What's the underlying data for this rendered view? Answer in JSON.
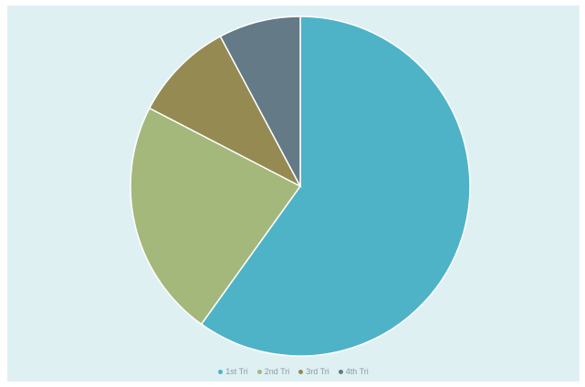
{
  "chart_data": {
    "type": "pie",
    "title": "",
    "categories": [
      "1st Tri",
      "2nd Tri",
      "3rd Tri",
      "4th Tri"
    ],
    "values": [
      59.9,
      22.7,
      9.6,
      7.8
    ],
    "colors": [
      "#4fb3c8",
      "#a4b87c",
      "#958a52",
      "#647a86"
    ],
    "start": "top",
    "direction": "clockwise",
    "legend": {
      "position": "bottom"
    }
  }
}
